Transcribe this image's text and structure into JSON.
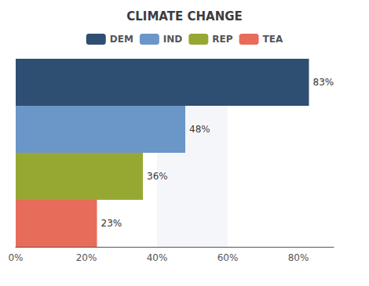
{
  "chart_data": {
    "type": "bar",
    "orientation": "horizontal",
    "title": "CLIMATE CHANGE",
    "categories": [
      "DEM",
      "IND",
      "REP",
      "TEA"
    ],
    "values": [
      83,
      48,
      36,
      23
    ],
    "value_labels": [
      "83%",
      "48%",
      "36%",
      "23%"
    ],
    "colors": [
      "#2e4e72",
      "#6b96c8",
      "#96a832",
      "#e86c5a"
    ],
    "data_labels": true,
    "xlim": [
      0,
      90
    ],
    "xticks": [
      {
        "value": 0,
        "label": "0%"
      },
      {
        "value": 20,
        "label": "20%"
      },
      {
        "value": 40,
        "label": "40%"
      },
      {
        "value": 60,
        "label": "60%"
      },
      {
        "value": 80,
        "label": "80%"
      }
    ],
    "legend": "top",
    "grid": false,
    "tick_labels": "x"
  }
}
